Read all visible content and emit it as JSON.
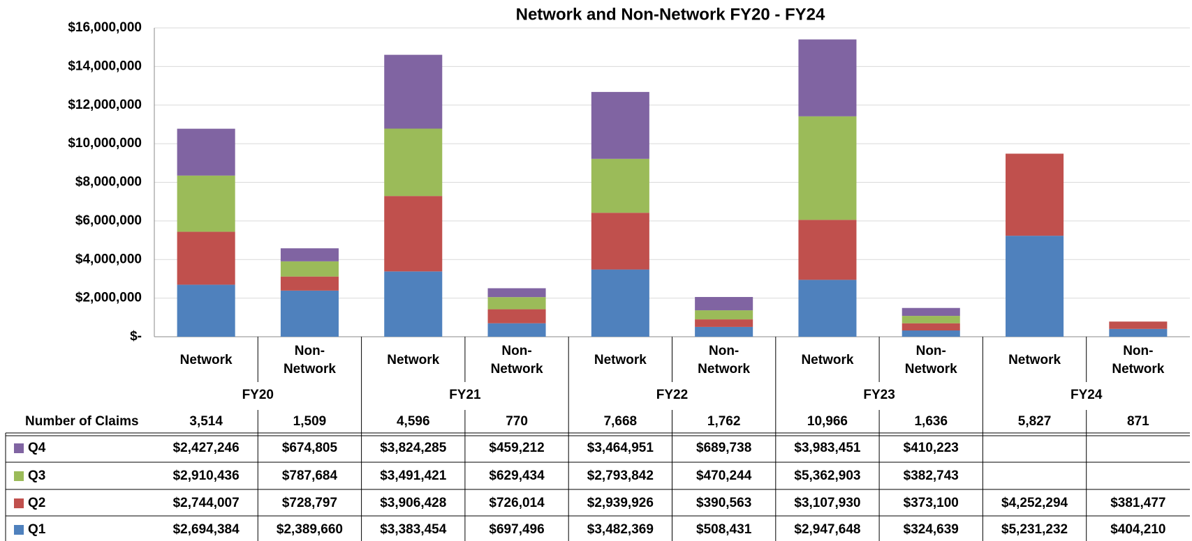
{
  "chart_data": {
    "type": "stacked_bar",
    "title": "Network and Non-Network FY20 - FY24",
    "categories": [
      "Network",
      "Non-Network",
      "Network",
      "Non-Network",
      "Network",
      "Non-Network",
      "Network",
      "Non-Network",
      "Network",
      "Non-Network"
    ],
    "groups": [
      "FY20",
      "FY21",
      "FY22",
      "FY23",
      "FY24"
    ],
    "claims_label": "Number of Claims",
    "claims": [
      3514,
      1509,
      4596,
      770,
      7668,
      1762,
      10966,
      1636,
      5827,
      871
    ],
    "claims_labels": [
      "3,514",
      "1,509",
      "4,596",
      "770",
      "7,668",
      "1,762",
      "10,966",
      "1,636",
      "5,827",
      "871"
    ],
    "series": [
      {
        "name": "Q1",
        "color": "#4f81bd",
        "values": [
          2694384,
          2389660,
          3383454,
          697496,
          3482369,
          508431,
          2947648,
          324639,
          5231232,
          404210
        ],
        "value_labels": [
          "$2,694,384",
          "$2,389,660",
          "$3,383,454",
          "$697,496",
          "$3,482,369",
          "$508,431",
          "$2,947,648",
          "$324,639",
          "$5,231,232",
          "$404,210"
        ]
      },
      {
        "name": "Q2",
        "color": "#c0504d",
        "values": [
          2744007,
          728797,
          3906428,
          726014,
          2939926,
          390563,
          3107930,
          373100,
          4252294,
          381477
        ],
        "value_labels": [
          "$2,744,007",
          "$728,797",
          "$3,906,428",
          "$726,014",
          "$2,939,926",
          "$390,563",
          "$3,107,930",
          "$373,100",
          "$4,252,294",
          "$381,477"
        ]
      },
      {
        "name": "Q3",
        "color": "#9bbb59",
        "values": [
          2910436,
          787684,
          3491421,
          629434,
          2793842,
          470244,
          5362903,
          382743,
          null,
          null
        ],
        "value_labels": [
          "$2,910,436",
          "$787,684",
          "$3,491,421",
          "$629,434",
          "$2,793,842",
          "$470,244",
          "$5,362,903",
          "$382,743",
          null,
          null
        ]
      },
      {
        "name": "Q4",
        "color": "#8064a2",
        "values": [
          2427246,
          674805,
          3824285,
          459212,
          3464951,
          689738,
          3983451,
          410223,
          null,
          null
        ],
        "value_labels": [
          "$2,427,246",
          "$674,805",
          "$3,824,285",
          "$459,212",
          "$3,464,951",
          "$689,738",
          "$3,983,451",
          "$410,223",
          null,
          null
        ]
      }
    ],
    "ylim": [
      0,
      16000000
    ],
    "yticks": [
      {
        "value": 0,
        "label": "$-"
      },
      {
        "value": 2000000,
        "label": "$2,000,000"
      },
      {
        "value": 4000000,
        "label": "$4,000,000"
      },
      {
        "value": 6000000,
        "label": "$6,000,000"
      },
      {
        "value": 8000000,
        "label": "$8,000,000"
      },
      {
        "value": 10000000,
        "label": "$10,000,000"
      },
      {
        "value": 12000000,
        "label": "$12,000,000"
      },
      {
        "value": 14000000,
        "label": "$14,000,000"
      },
      {
        "value": 16000000,
        "label": "$16,000,000"
      }
    ],
    "grid": true
  }
}
